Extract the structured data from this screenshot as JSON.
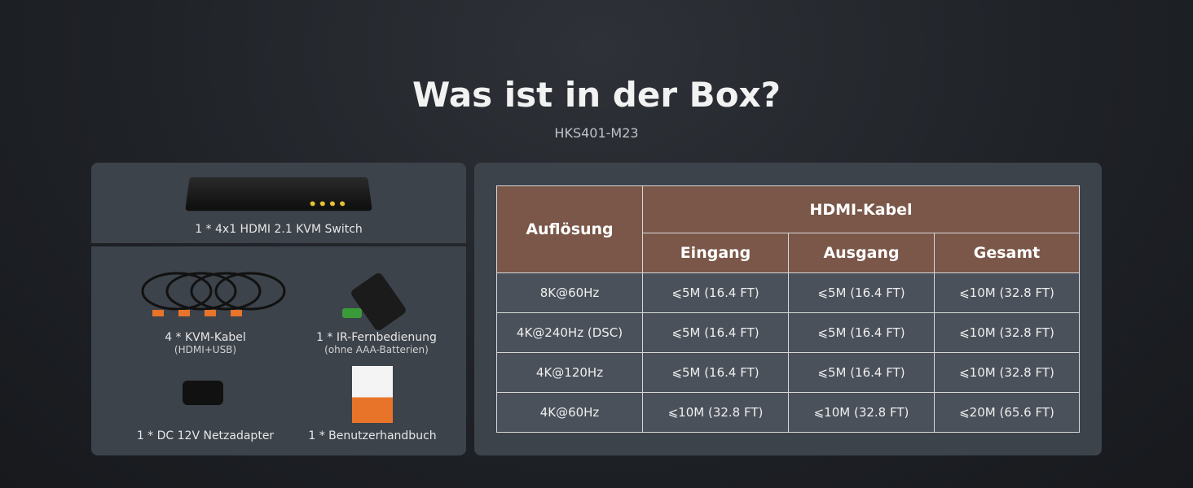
{
  "title": "Was ist in der Box?",
  "subtitle": "HKS401-M23",
  "items": [
    {
      "label": "1 * 4x1 HDMI 2.1 KVM Switch",
      "note": ""
    },
    {
      "label": "4 * KVM-Kabel",
      "note": "(HDMI+USB)"
    },
    {
      "label": "1 * IR-Fernbedienung",
      "note": "(ohne AAA-Batterien)"
    },
    {
      "label": "1 * DC 12V Netzadapter",
      "note": ""
    },
    {
      "label": "1 * Benutzerhandbuch",
      "note": ""
    }
  ],
  "table": {
    "col_resolution": "Auflösung",
    "group": "HDMI-Kabel",
    "cols": [
      "Eingang",
      "Ausgang",
      "Gesamt"
    ],
    "rows": [
      [
        "8K@60Hz",
        "⩽5M (16.4 FT)",
        "⩽5M (16.4 FT)",
        "⩽10M (32.8 FT)"
      ],
      [
        "4K@240Hz (DSC)",
        "⩽5M (16.4 FT)",
        "⩽5M (16.4 FT)",
        "⩽10M (32.8 FT)"
      ],
      [
        "4K@120Hz",
        "⩽5M (16.4 FT)",
        "⩽5M (16.4 FT)",
        "⩽10M (32.8 FT)"
      ],
      [
        "4K@60Hz",
        "⩽10M (32.8 FT)",
        "⩽10M (32.8 FT)",
        "⩽20M (65.6 FT)"
      ]
    ]
  },
  "colors": {
    "header": "#7a5749",
    "panel": "#3d434b",
    "accent": "#e8742a"
  }
}
